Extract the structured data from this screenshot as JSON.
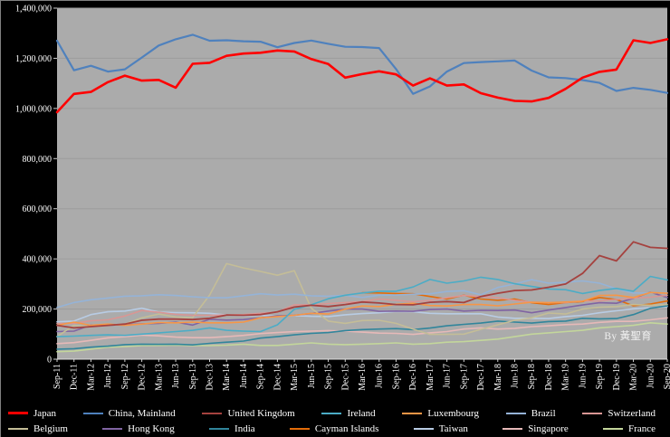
{
  "watermark": "By 黃聖育",
  "chart_data": {
    "type": "line",
    "title": "",
    "xlabel": "",
    "ylabel": "",
    "ylim": [
      0,
      1400000
    ],
    "ytick_interval": 200000,
    "ytick_labels": [
      "0",
      "200,000",
      "400,000",
      "600,000",
      "800,000",
      "1,000,000",
      "1,200,000",
      "1,400,000"
    ],
    "grid": true,
    "legend_position": "bottom",
    "plot_bg": "#ABABAB",
    "page_bg": "#000000",
    "categories": [
      "Sep-11",
      "Dec-11",
      "Mar-12",
      "Jun-12",
      "Sep-12",
      "Dec-12",
      "Mar-13",
      "Jun-13",
      "Sep-13",
      "Dec-13",
      "Mar-14",
      "Jun-14",
      "Sep-14",
      "Dec-14",
      "Mar-15",
      "Jun-15",
      "Sep-15",
      "Dec-15",
      "Mar-16",
      "Jun-16",
      "Sep-16",
      "Dec-16",
      "Mar-17",
      "Jun-17",
      "Sep-17",
      "Dec-17",
      "Mar-18",
      "Jun-18",
      "Sep-18",
      "Dec-18",
      "Mar-19",
      "Jun-19",
      "Sep-19",
      "Dec-19",
      "Mar-20",
      "Jun-20",
      "Sep-20"
    ],
    "series": [
      {
        "name": "Japan",
        "color": "#FF0000",
        "width": 2.6,
        "values": [
          985000,
          1058000,
          1066000,
          1105000,
          1131000,
          1111000,
          1114000,
          1083000,
          1178000,
          1182000,
          1210000,
          1219000,
          1222000,
          1231000,
          1227000,
          1197000,
          1177000,
          1123000,
          1137000,
          1148000,
          1136000,
          1091000,
          1120000,
          1091000,
          1096000,
          1061000,
          1043000,
          1030000,
          1028000,
          1042000,
          1078000,
          1123000,
          1146000,
          1155000,
          1272000,
          1261000,
          1276000
        ]
      },
      {
        "name": "China, Mainland",
        "color": "#4F81BD",
        "width": 2.2,
        "values": [
          1270000,
          1152000,
          1170000,
          1147000,
          1156000,
          1203000,
          1251000,
          1276000,
          1294000,
          1270000,
          1272000,
          1268000,
          1266000,
          1244000,
          1261000,
          1271000,
          1258000,
          1246000,
          1245000,
          1241000,
          1157000,
          1058000,
          1088000,
          1147000,
          1181000,
          1185000,
          1188000,
          1191000,
          1151000,
          1124000,
          1121000,
          1113000,
          1102000,
          1070000,
          1082000,
          1074000,
          1062000
        ]
      },
      {
        "name": "United Kingdom",
        "color": "#A5423F",
        "width": 1.8,
        "values": [
          135000,
          125000,
          130000,
          135000,
          140000,
          155000,
          160000,
          160000,
          158000,
          163000,
          176000,
          175000,
          178000,
          189000,
          208000,
          215000,
          210000,
          218000,
          228000,
          224000,
          218000,
          217000,
          227000,
          230000,
          226000,
          250000,
          263000,
          274000,
          276000,
          287000,
          300000,
          342000,
          413000,
          392000,
          468000,
          446000,
          442000
        ]
      },
      {
        "name": "Ireland",
        "color": "#4BACC6",
        "width": 1.6,
        "values": [
          90000,
          92000,
          95000,
          97000,
          95000,
          100000,
          105000,
          110000,
          115000,
          125000,
          115000,
          112000,
          110000,
          137000,
          199000,
          217000,
          241000,
          255000,
          264000,
          271000,
          271000,
          288000,
          318000,
          303000,
          312000,
          327000,
          318000,
          301000,
          290000,
          280000,
          277000,
          262000,
          274000,
          282000,
          271000,
          330000,
          316000
        ]
      },
      {
        "name": "Luxembourg",
        "color": "#F79646",
        "width": 1.6,
        "values": [
          135000,
          148000,
          135000,
          140000,
          135000,
          140000,
          146000,
          145000,
          148000,
          145000,
          145000,
          148000,
          165000,
          170000,
          175000,
          183000,
          180000,
          200000,
          212000,
          210000,
          219000,
          223000,
          214000,
          212000,
          218000,
          218000,
          213000,
          220000,
          227000,
          225000,
          228000,
          231000,
          254000,
          255000,
          246000,
          266000,
          263000
        ]
      },
      {
        "name": "Brazil",
        "color": "#95B3D7",
        "width": 1.6,
        "values": [
          206000,
          226000,
          237000,
          244000,
          251000,
          253000,
          257000,
          254000,
          249000,
          245000,
          245000,
          253000,
          261000,
          256000,
          259000,
          253000,
          251000,
          255000,
          246000,
          255000,
          256000,
          259000,
          261000,
          270000,
          273000,
          257000,
          286000,
          300000,
          317000,
          303000,
          307000,
          312000,
          303000,
          281000,
          264000,
          264000,
          265000
        ]
      },
      {
        "name": "Switzerland",
        "color": "#D99694",
        "width": 1.6,
        "values": [
          142000,
          143000,
          153000,
          157000,
          172000,
          194000,
          187000,
          179000,
          175000,
          175000,
          176000,
          178000,
          183000,
          188000,
          217000,
          217000,
          222000,
          226000,
          230000,
          240000,
          235000,
          229000,
          234000,
          245000,
          254000,
          250000,
          245000,
          235000,
          227000,
          226000,
          226000,
          232000,
          232000,
          238000,
          244000,
          247000,
          255000
        ]
      },
      {
        "name": "Belgium",
        "color": "#C4BD97",
        "width": 1.6,
        "values": [
          90000,
          135000,
          130000,
          135000,
          140000,
          165000,
          180000,
          168000,
          166000,
          256000,
          381000,
          364000,
          350000,
          335000,
          353000,
          203000,
          152000,
          143000,
          154000,
          155000,
          143000,
          120000,
          99000,
          99000,
          100000,
          119000,
          137000,
          155000,
          165000,
          184000,
          180000,
          200000,
          207000,
          210000,
          218000,
          215000,
          218000
        ]
      },
      {
        "name": "Hong Kong",
        "color": "#8064A2",
        "width": 1.6,
        "values": [
          110000,
          112000,
          136000,
          136000,
          137000,
          141000,
          143000,
          148000,
          136000,
          159000,
          156000,
          158000,
          165000,
          173000,
          175000,
          182000,
          192000,
          200000,
          200000,
          191000,
          192000,
          191000,
          198000,
          200000,
          192000,
          195000,
          194000,
          196000,
          185000,
          196000,
          206000,
          216000,
          225000,
          223000,
          243000,
          267000,
          246000
        ]
      },
      {
        "name": "India",
        "color": "#31859B",
        "width": 1.6,
        "values": [
          40000,
          42000,
          48000,
          52000,
          58000,
          60000,
          59000,
          60000,
          57000,
          63000,
          68000,
          72000,
          84000,
          90000,
          97000,
          103000,
          106000,
          114000,
          118000,
          120000,
          122000,
          118000,
          124000,
          133000,
          139000,
          144000,
          152000,
          148000,
          144000,
          150000,
          152000,
          163000,
          161000,
          162000,
          178000,
          203000,
          213000
        ]
      },
      {
        "name": "Cayman Islands",
        "color": "#E36C09",
        "width": 1.6,
        "values": [
          null,
          null,
          null,
          null,
          null,
          null,
          null,
          null,
          null,
          null,
          null,
          null,
          null,
          null,
          null,
          null,
          null,
          null,
          265000,
          264000,
          262000,
          261000,
          250000,
          240000,
          255000,
          240000,
          235000,
          240000,
          225000,
          218000,
          226000,
          230000,
          246000,
          238000,
          213000,
          220000,
          232000
        ]
      },
      {
        "name": "Taiwan",
        "color": "#B8CCE4",
        "width": 1.6,
        "values": [
          149000,
          152000,
          178000,
          189000,
          192000,
          203000,
          188000,
          186000,
          185000,
          183000,
          176000,
          173000,
          175000,
          172000,
          174000,
          171000,
          170000,
          177000,
          182000,
          185000,
          190000,
          189000,
          183000,
          181000,
          181000,
          181000,
          168000,
          163000,
          163000,
          162000,
          170000,
          175000,
          185000,
          193000,
          201000,
          205000,
          210000
        ]
      },
      {
        "name": "Singapore",
        "color": "#E6B9B8",
        "width": 1.6,
        "values": [
          62000,
          66000,
          75000,
          85000,
          90000,
          96000,
          93000,
          88000,
          86000,
          86000,
          90000,
          95000,
          102000,
          106000,
          110000,
          112000,
          114000,
          112000,
          108000,
          104000,
          103000,
          99000,
          105000,
          110000,
          120000,
          125000,
          120000,
          123000,
          130000,
          133000,
          138000,
          140000,
          147000,
          151000,
          151000,
          157000,
          165000
        ]
      },
      {
        "name": "France",
        "color": "#C3D69B",
        "width": 1.6,
        "values": [
          30000,
          32000,
          40000,
          48000,
          50000,
          54000,
          55000,
          56000,
          54000,
          54000,
          56000,
          60000,
          55000,
          55000,
          60000,
          65000,
          60000,
          58000,
          60000,
          62000,
          65000,
          60000,
          62000,
          68000,
          70000,
          75000,
          80000,
          90000,
          100000,
          105000,
          110000,
          115000,
          125000,
          130000,
          135000,
          145000,
          140000
        ]
      }
    ]
  }
}
